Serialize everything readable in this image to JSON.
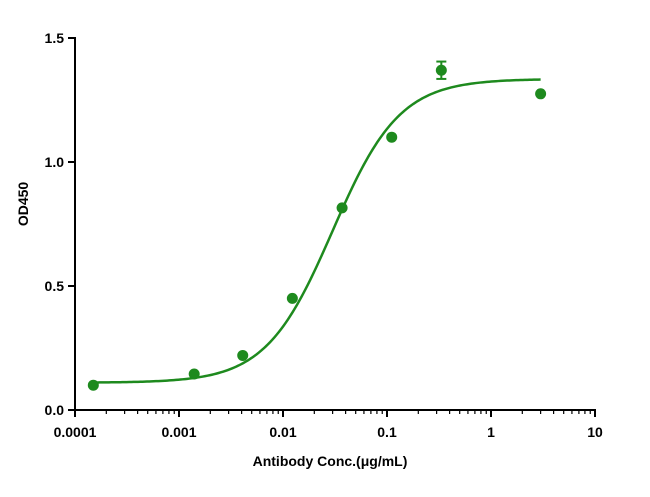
{
  "chart_data": {
    "type": "scatter",
    "title": "",
    "xlabel": "Antibody Conc.(μg/mL)",
    "ylabel": "OD450",
    "x_scale": "log",
    "xlim": [
      0.0001,
      10
    ],
    "ylim": [
      0.0,
      1.5
    ],
    "x_ticks": [
      {
        "value": 0.0001,
        "label": "0.0001"
      },
      {
        "value": 0.001,
        "label": "0.001"
      },
      {
        "value": 0.01,
        "label": "0.01"
      },
      {
        "value": 0.1,
        "label": "0.1"
      },
      {
        "value": 1,
        "label": "1"
      },
      {
        "value": 10,
        "label": "10"
      }
    ],
    "y_ticks": [
      {
        "value": 0.0,
        "label": "0.0"
      },
      {
        "value": 0.5,
        "label": "0.5"
      },
      {
        "value": 1.0,
        "label": "1.0"
      },
      {
        "value": 1.5,
        "label": "1.5"
      }
    ],
    "grid": false,
    "color": "#1e8a1e",
    "points": [
      {
        "x": 0.00015,
        "y": 0.1,
        "err": 0
      },
      {
        "x": 0.0014,
        "y": 0.145,
        "err": 0
      },
      {
        "x": 0.0041,
        "y": 0.22,
        "err": 0
      },
      {
        "x": 0.0123,
        "y": 0.45,
        "err": 0
      },
      {
        "x": 0.037,
        "y": 0.815,
        "err": 0
      },
      {
        "x": 0.111,
        "y": 1.1,
        "err": 0
      },
      {
        "x": 0.333,
        "y": 1.37,
        "err": 0.035
      },
      {
        "x": 3.0,
        "y": 1.275,
        "err": 0
      }
    ],
    "fit_curve": {
      "model": "4PL",
      "bottom": 0.11,
      "top": 1.335,
      "ec50": 0.03,
      "hill": 1.35,
      "x_range": [
        0.00015,
        3.0
      ]
    }
  }
}
